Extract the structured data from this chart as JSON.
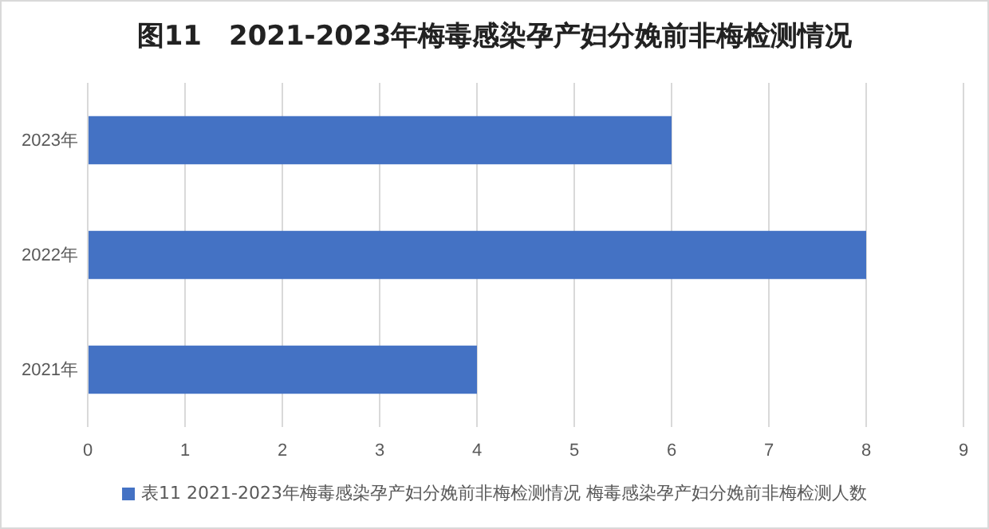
{
  "chart_data": {
    "type": "bar",
    "orientation": "horizontal",
    "title": "图11　2021-2023年梅毒感染孕产妇分娩前非梅检测情况",
    "categories": [
      "2023年",
      "2022年",
      "2021年"
    ],
    "series": [
      {
        "name": "表11  2021-2023年梅毒感染孕产妇分娩前非梅检测情况 梅毒感染孕产妇分娩前非梅检测人数",
        "color": "#4472c4",
        "values": [
          6,
          8,
          4
        ]
      }
    ],
    "xlim": [
      0,
      9
    ],
    "xticks": [
      0,
      1,
      2,
      3,
      4,
      5,
      6,
      7,
      8,
      9
    ],
    "grid": "x",
    "legend": "bottom"
  }
}
